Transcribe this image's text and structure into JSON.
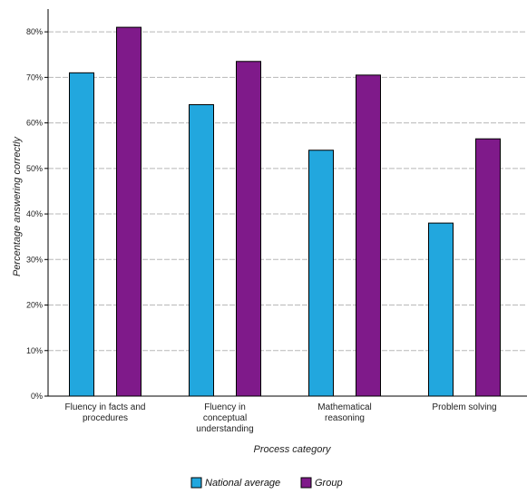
{
  "chart_data": {
    "type": "bar",
    "xlabel": "Process category",
    "ylabel": "Percentage answering correctly",
    "ylim": [
      0,
      85
    ],
    "yticks": [
      0,
      10,
      20,
      30,
      40,
      50,
      60,
      70,
      80
    ],
    "ytick_format": "{v}%",
    "grid": true,
    "legend_position": "bottom",
    "categories": [
      [
        "Fluency in facts and",
        "procedures"
      ],
      [
        "Fluency in",
        "conceptual",
        "understanding"
      ],
      [
        "Mathematical",
        "reasoning"
      ],
      [
        "Problem solving"
      ]
    ],
    "series": [
      {
        "name": "National average",
        "color": "#22a7de",
        "values": [
          71,
          64,
          54,
          38
        ]
      },
      {
        "name": "Group",
        "color": "#7f1a8a",
        "values": [
          81,
          73.5,
          70.5,
          56.5
        ]
      }
    ]
  }
}
